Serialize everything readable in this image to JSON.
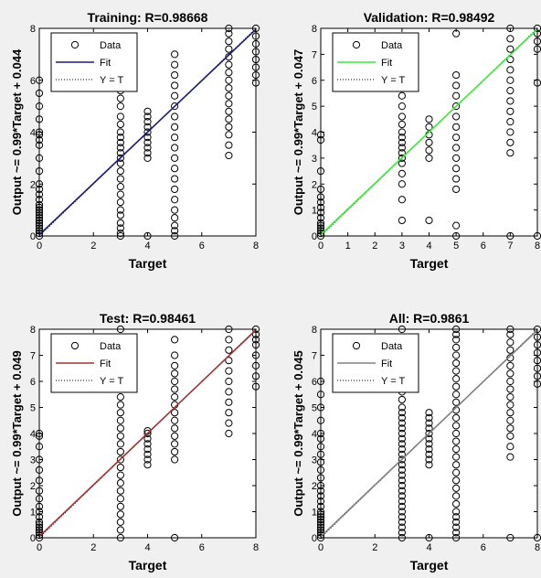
{
  "chart_data": [
    {
      "type": "scatter",
      "title": "Training: R=0.98668",
      "xlabel": "Target",
      "ylabel": "Output ~= 0.99*Target + 0.044",
      "xlim": [
        0,
        8
      ],
      "ylim": [
        0,
        8
      ],
      "xticks": [
        "0",
        "2",
        "4",
        "6",
        "8"
      ],
      "yticks": [
        "0",
        "2",
        "4",
        "6",
        "8"
      ],
      "fit": {
        "slope": 0.99,
        "intercept": 0.044,
        "color": "#1a1a7a"
      },
      "legend": {
        "placement": "top-left",
        "entries": [
          "Data",
          "Fit",
          "Y = T"
        ]
      },
      "points": [
        {
          "x": 0,
          "y": [
            0,
            0.1,
            0.2,
            0.3,
            0.4,
            0.5,
            0.6,
            0.7,
            0.8,
            0.9,
            1.0,
            1.1,
            1.2,
            1.4,
            1.6,
            1.8,
            2.0,
            2.5,
            3.0,
            3.5,
            3.7,
            3.9,
            4.0,
            4.5,
            5.0,
            5.5,
            6.0
          ]
        },
        {
          "x": 3,
          "y": [
            0,
            0.1,
            0.3,
            0.5,
            0.8,
            1.0,
            1.3,
            1.6,
            1.9,
            2.2,
            2.5,
            2.8,
            3.0,
            3.2,
            3.4,
            3.6,
            3.8,
            4.0,
            4.3,
            4.6,
            5.0,
            5.3,
            5.6,
            6.0,
            6.4,
            6.8,
            7.0
          ]
        },
        {
          "x": 4,
          "y": [
            0,
            3.0,
            3.2,
            3.4,
            3.6,
            3.8,
            4.0,
            4.2,
            4.4,
            4.6,
            4.8
          ]
        },
        {
          "x": 5,
          "y": [
            0,
            0.2,
            0.4,
            0.7,
            1.0,
            1.4,
            1.8,
            2.2,
            2.6,
            3.0,
            3.4,
            3.8,
            4.2,
            4.6,
            5.0,
            5.4,
            5.8,
            6.2,
            6.6,
            7.0
          ]
        },
        {
          "x": 7,
          "y": [
            3.1,
            3.5,
            3.9,
            4.2,
            4.5,
            4.8,
            5.1,
            5.4,
            5.7,
            6.0,
            6.3,
            6.6,
            6.9,
            7.2,
            7.5,
            7.8,
            8.0
          ]
        },
        {
          "x": 8,
          "y": [
            5.9,
            6.2,
            6.5,
            6.8,
            7.1,
            7.4,
            7.7,
            8.0
          ]
        }
      ]
    },
    {
      "type": "scatter",
      "title": "Validation: R=0.98492",
      "xlabel": "Target",
      "ylabel": "Output ~= 0.99*Target + 0.047",
      "xlim": [
        0,
        8
      ],
      "ylim": [
        0,
        8
      ],
      "xticks": [
        "0",
        "1",
        "2",
        "3",
        "4",
        "5",
        "6",
        "7",
        "8"
      ],
      "yticks": [
        "0",
        "1",
        "2",
        "3",
        "4",
        "5",
        "6",
        "7",
        "8"
      ],
      "fit": {
        "slope": 0.99,
        "intercept": 0.047,
        "color": "#33ee33"
      },
      "legend": {
        "placement": "top-left",
        "entries": [
          "Data",
          "Fit",
          "Y = T"
        ]
      },
      "points": [
        {
          "x": 0,
          "y": [
            0,
            0.1,
            0.2,
            0.3,
            0.4,
            0.5,
            0.7,
            0.9,
            1.1,
            1.3,
            1.5,
            1.8,
            2.5,
            3.7,
            3.9
          ]
        },
        {
          "x": 3,
          "y": [
            0.6,
            1.4,
            2.0,
            2.4,
            2.8,
            3.0,
            3.2,
            3.4,
            3.6,
            3.8,
            4.0,
            4.3,
            4.6,
            5.0,
            5.4,
            5.7,
            6.0
          ]
        },
        {
          "x": 4,
          "y": [
            0.6,
            3.0,
            3.3,
            3.6,
            3.9,
            4.2,
            4.5
          ]
        },
        {
          "x": 5,
          "y": [
            0,
            0.4,
            1.8,
            2.2,
            2.6,
            3.0,
            3.4,
            3.8,
            4.2,
            4.6,
            5.0,
            5.4,
            5.8,
            6.2,
            7.8
          ]
        },
        {
          "x": 7,
          "y": [
            0,
            3.2,
            3.6,
            4.0,
            4.4,
            4.8,
            5.2,
            5.6,
            6.0,
            6.4,
            6.8,
            7.2,
            7.6,
            8.0
          ]
        },
        {
          "x": 8,
          "y": [
            0,
            5.9,
            7.2,
            7.5,
            7.8,
            8.0
          ]
        }
      ]
    },
    {
      "type": "scatter",
      "title": "Test: R=0.98461",
      "xlabel": "Target",
      "ylabel": "Output ~= 0.99*Target + 0.049",
      "xlim": [
        0,
        8
      ],
      "ylim": [
        0,
        8
      ],
      "xticks": [
        "0",
        "2",
        "4",
        "6",
        "8"
      ],
      "yticks": [
        "0",
        "1",
        "2",
        "3",
        "4",
        "5",
        "6",
        "7",
        "8"
      ],
      "fit": {
        "slope": 0.99,
        "intercept": 0.049,
        "color": "#a03232"
      },
      "legend": {
        "placement": "top-left",
        "entries": [
          "Data",
          "Fit",
          "Y = T"
        ]
      },
      "points": [
        {
          "x": 0,
          "y": [
            0,
            0.1,
            0.2,
            0.3,
            0.4,
            0.5,
            0.6,
            0.8,
            1.0,
            1.2,
            1.5,
            1.8,
            2.2,
            2.6,
            3.0,
            3.5,
            3.9,
            4.0
          ]
        },
        {
          "x": 3,
          "y": [
            0,
            0.3,
            0.6,
            0.9,
            1.2,
            1.5,
            1.8,
            2.1,
            2.4,
            2.7,
            3.0,
            3.3,
            3.6,
            3.9,
            4.2,
            4.5,
            4.8,
            5.1,
            5.4,
            5.7,
            6.0,
            6.4,
            6.8,
            7.2,
            7.6,
            8.0
          ]
        },
        {
          "x": 4,
          "y": [
            2.8,
            3.0,
            3.2,
            3.4,
            3.6,
            3.8,
            4.0,
            4.1
          ]
        },
        {
          "x": 5,
          "y": [
            0,
            3.0,
            3.3,
            3.6,
            3.9,
            4.2,
            4.5,
            4.8,
            5.1,
            5.4,
            5.7,
            6.0,
            6.3,
            6.6,
            7.0,
            7.6
          ]
        },
        {
          "x": 7,
          "y": [
            4.0,
            4.4,
            4.8,
            5.2,
            5.6,
            6.0,
            6.4,
            6.8,
            7.2,
            7.6,
            8.0
          ]
        },
        {
          "x": 8,
          "y": [
            5.8,
            6.2,
            6.6,
            7.0,
            7.4,
            7.6,
            7.8,
            8.0
          ]
        }
      ]
    },
    {
      "type": "scatter",
      "title": "All: R=0.9861",
      "xlabel": "Target",
      "ylabel": "Output ~= 0.99*Target + 0.045",
      "xlim": [
        0,
        8
      ],
      "ylim": [
        0,
        8
      ],
      "xticks": [
        "0",
        "2",
        "4",
        "6",
        "8"
      ],
      "yticks": [
        "0",
        "1",
        "2",
        "3",
        "4",
        "5",
        "6",
        "7",
        "8"
      ],
      "fit": {
        "slope": 0.99,
        "intercept": 0.045,
        "color": "#808080"
      },
      "legend": {
        "placement": "top-left",
        "entries": [
          "Data",
          "Fit",
          "Y = T"
        ]
      },
      "points": [
        {
          "x": 0,
          "y": [
            0,
            0.1,
            0.2,
            0.3,
            0.4,
            0.5,
            0.6,
            0.7,
            0.8,
            0.9,
            1.0,
            1.2,
            1.4,
            1.6,
            1.8,
            2.0,
            2.3,
            2.6,
            2.9,
            3.2,
            3.5,
            3.8,
            4.0,
            4.5,
            5.0,
            5.5,
            6.0
          ]
        },
        {
          "x": 3,
          "y": [
            0,
            0.2,
            0.4,
            0.6,
            0.8,
            1.0,
            1.2,
            1.4,
            1.6,
            1.8,
            2.0,
            2.2,
            2.4,
            2.6,
            2.8,
            3.0,
            3.2,
            3.4,
            3.6,
            3.8,
            4.0,
            4.2,
            4.4,
            4.6,
            4.8,
            5.0,
            5.3,
            5.6,
            5.9,
            6.2,
            6.5,
            6.8,
            7.1,
            7.4,
            7.7,
            8.0
          ]
        },
        {
          "x": 4,
          "y": [
            0,
            2.8,
            3.0,
            3.2,
            3.4,
            3.6,
            3.8,
            4.0,
            4.2,
            4.4,
            4.6,
            4.8
          ]
        },
        {
          "x": 5,
          "y": [
            0,
            0.2,
            0.4,
            0.6,
            0.8,
            1.0,
            1.3,
            1.6,
            1.9,
            2.2,
            2.5,
            2.8,
            3.1,
            3.4,
            3.7,
            4.0,
            4.3,
            4.6,
            4.9,
            5.2,
            5.5,
            5.8,
            6.1,
            6.4,
            6.7,
            7.0,
            7.3,
            7.6,
            7.8,
            8.0
          ]
        },
        {
          "x": 7,
          "y": [
            0,
            3.1,
            3.5,
            3.9,
            4.2,
            4.5,
            4.8,
            5.1,
            5.4,
            5.7,
            6.0,
            6.3,
            6.6,
            6.9,
            7.2,
            7.5,
            7.8,
            8.0
          ]
        },
        {
          "x": 8,
          "y": [
            0,
            5.9,
            6.2,
            6.5,
            6.8,
            7.1,
            7.4,
            7.7,
            8.0
          ]
        }
      ]
    }
  ]
}
